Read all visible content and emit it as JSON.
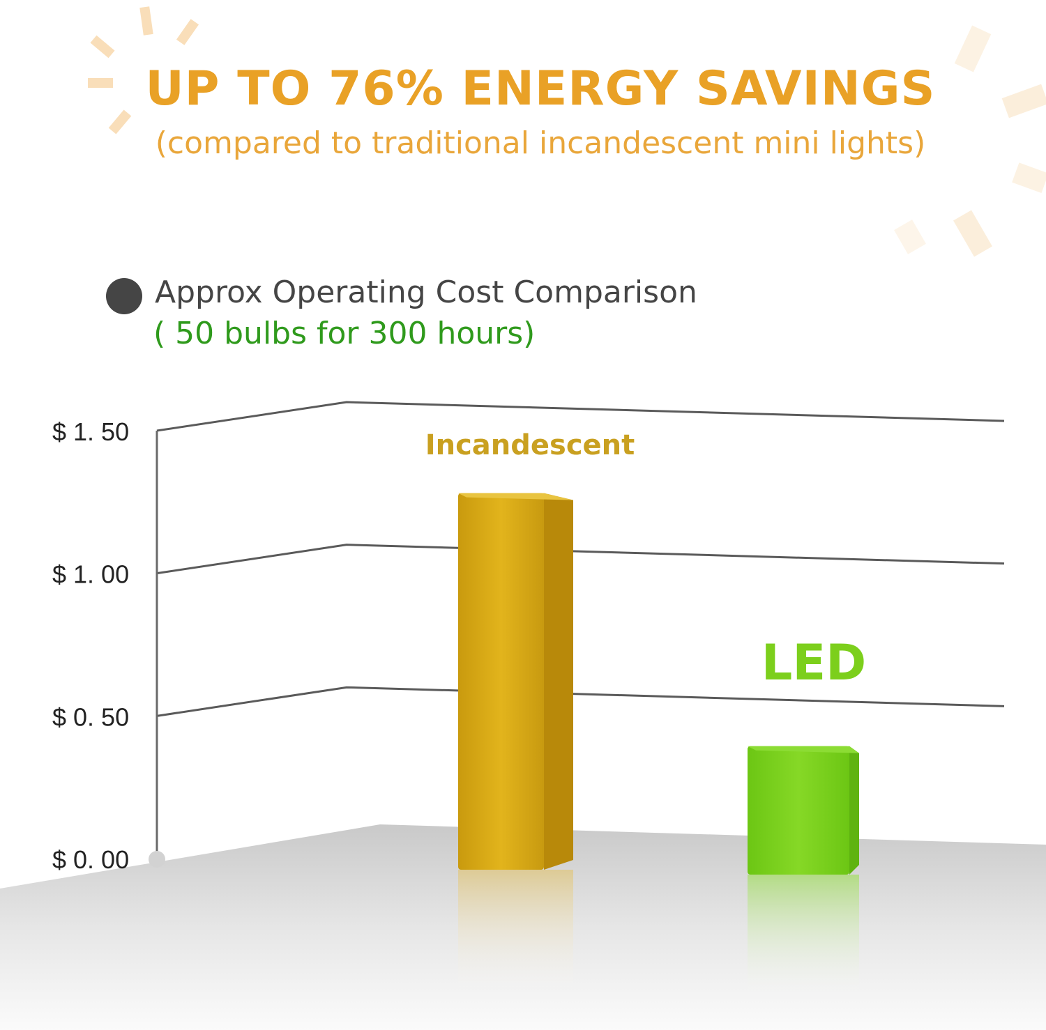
{
  "header": {
    "title": "UP TO 76% ENERGY SAVINGS",
    "subtitle": "(compared to traditional incandescent mini lights)"
  },
  "legend": {
    "label": "Approx Operating Cost Comparison",
    "sublabel": "(  50 bulbs for 300 hours)"
  },
  "colors": {
    "title": "#e9a126",
    "incandescent": "#d9a514",
    "led": "#7ccf1c",
    "legend_sub": "#2f9a1c"
  },
  "chart_data": {
    "type": "bar",
    "categories": [
      "Incandescent",
      "LED"
    ],
    "values": [
      1.32,
      0.45
    ],
    "ylim": [
      0,
      1.5
    ],
    "yticks": [
      "$ 0. 00",
      "$ 0. 50",
      "$ 1. 00",
      "$ 1. 50"
    ],
    "ytick_values": [
      0,
      0.5,
      1.0,
      1.5
    ],
    "grid": true,
    "style": "3d"
  }
}
